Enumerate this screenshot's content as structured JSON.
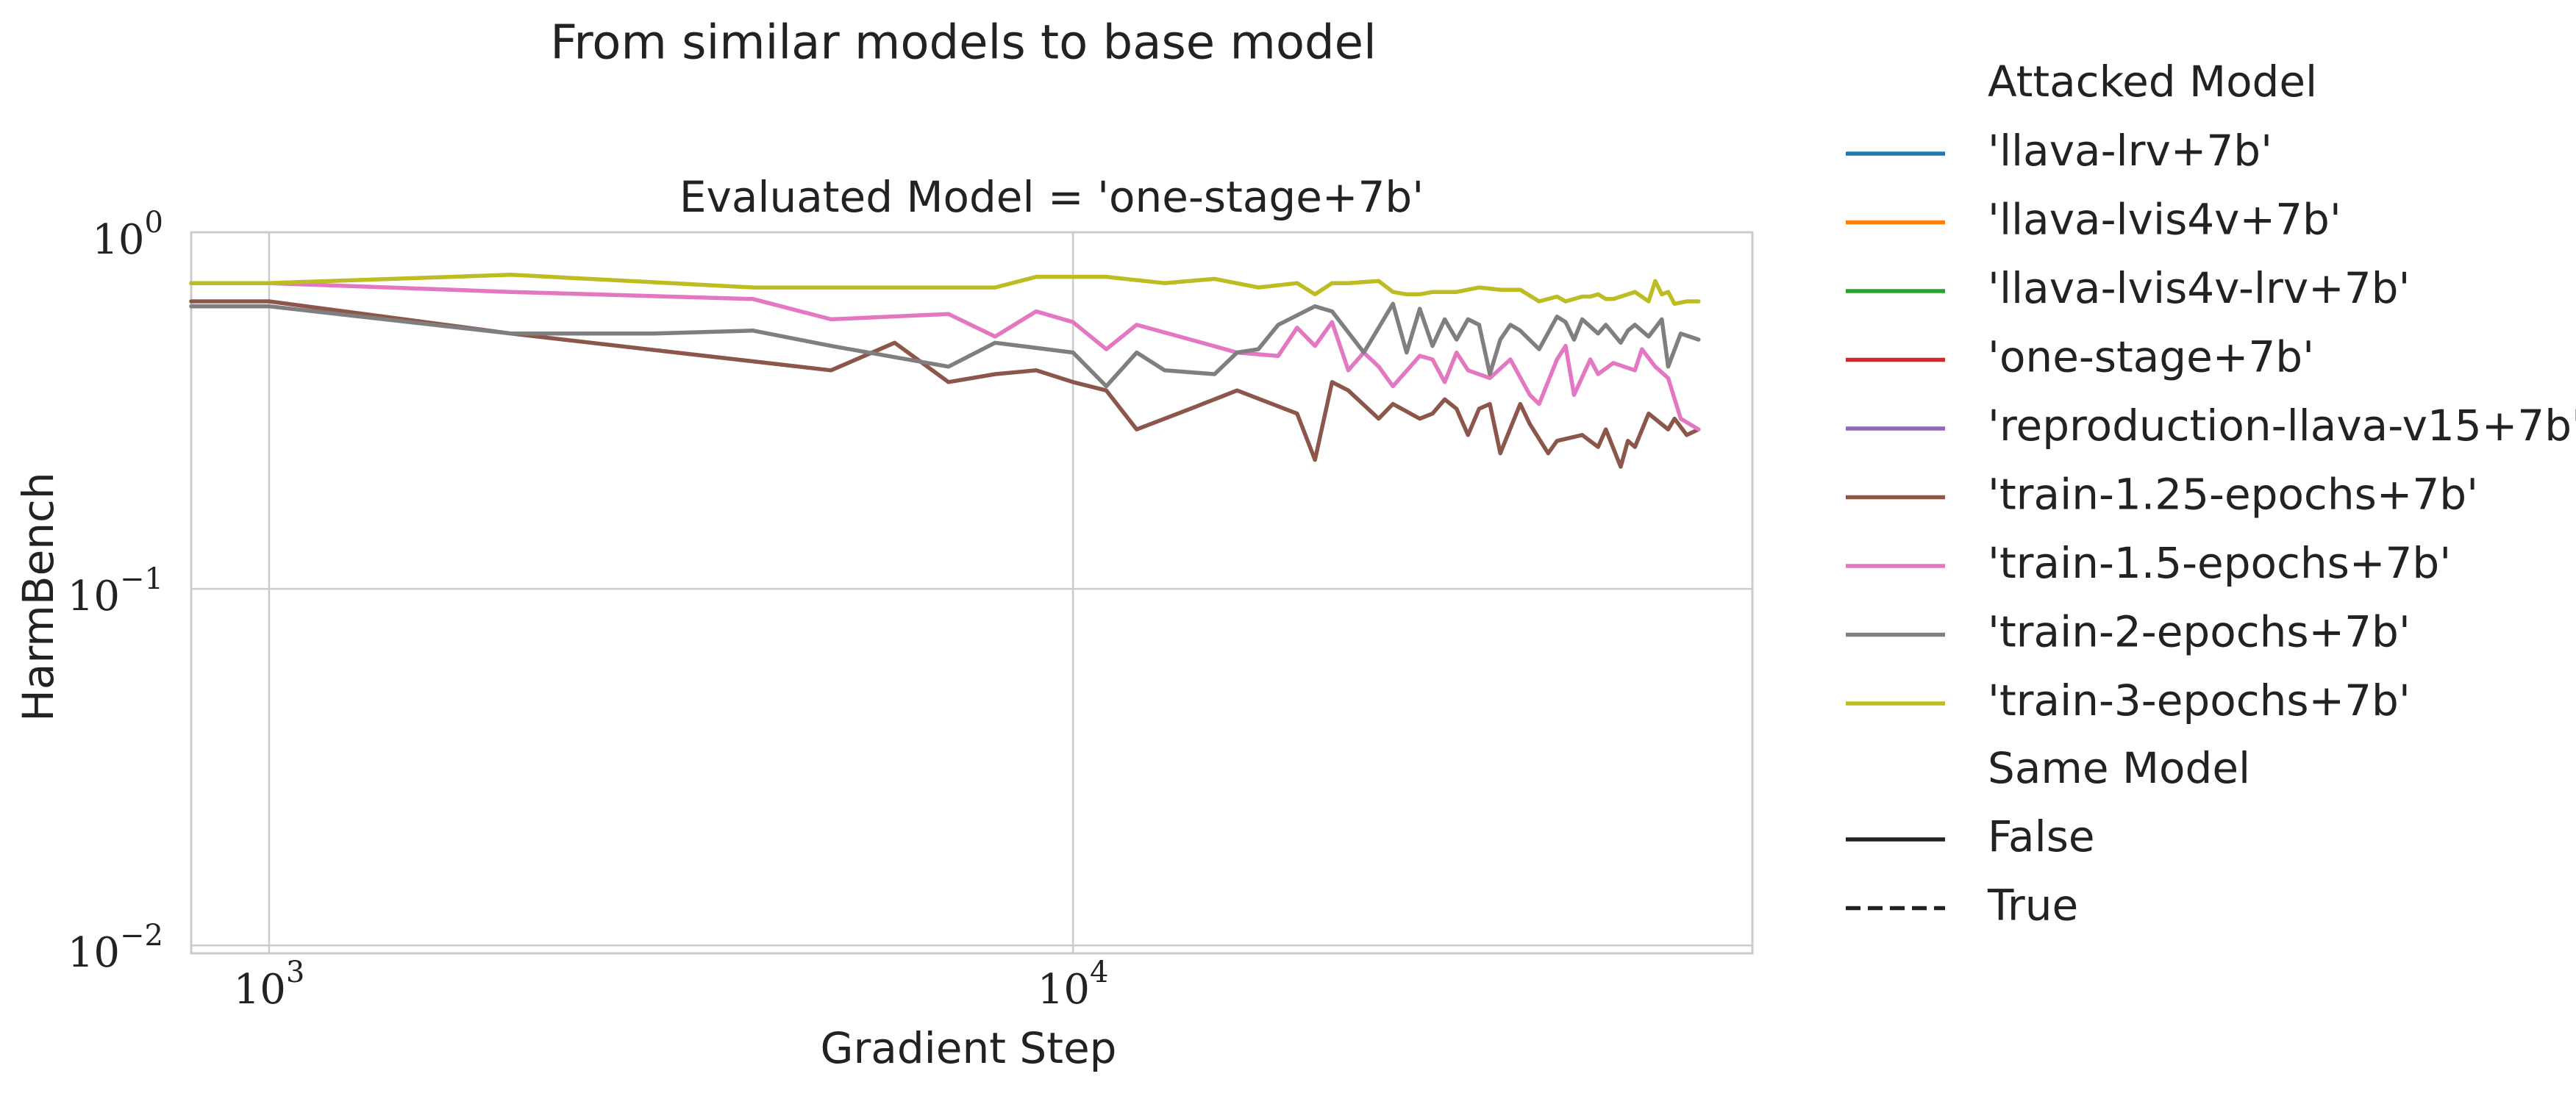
{
  "chart_data": {
    "type": "line",
    "title": "From similar models to base model",
    "subtitle": "Evaluated Model = 'one-stage+7b'",
    "xlabel": "Gradient Step",
    "ylabel": "HarmBench",
    "x_scale": "log",
    "y_scale": "log",
    "xlim": [
      800,
      70000
    ],
    "ylim": [
      0.0095,
      1.0
    ],
    "x_ticks": [
      {
        "value": 1000,
        "base": "10",
        "exp": "3"
      },
      {
        "value": 10000,
        "base": "10",
        "exp": "4"
      }
    ],
    "y_ticks": [
      {
        "value": 1,
        "base": "10",
        "exp": "0"
      },
      {
        "value": 0.1,
        "base": "10",
        "exp": "−1"
      },
      {
        "value": 0.01,
        "base": "10",
        "exp": "−2"
      }
    ],
    "grid": true,
    "legend_placement": "right",
    "legend": {
      "hue_title": "Attacked Model",
      "style_title": "Same Model",
      "style_entries": [
        {
          "label": "False",
          "dash": "solid"
        },
        {
          "label": "True",
          "dash": "dashed"
        }
      ]
    },
    "series": [
      {
        "name": "'llava-lrv+7b'",
        "color": "#1f77b4",
        "x": [],
        "y": []
      },
      {
        "name": "'llava-lvis4v+7b'",
        "color": "#ff7f0e",
        "x": [],
        "y": []
      },
      {
        "name": "'llava-lvis4v-lrv+7b'",
        "color": "#2ca02c",
        "x": [],
        "y": []
      },
      {
        "name": "'one-stage+7b'",
        "color": "#d62728",
        "x": [],
        "y": []
      },
      {
        "name": "'reproduction-llava-v15+7b'",
        "color": "#9467bd",
        "x": [],
        "y": []
      },
      {
        "name": "'train-1.25-epochs+7b'",
        "color": "#8c564b",
        "x": [
          800,
          1000,
          2000,
          5000,
          6000,
          7000,
          8000,
          9000,
          10000,
          11000,
          12000,
          14000,
          16000,
          19000,
          20000,
          21000,
          22000,
          24000,
          25000,
          27000,
          28000,
          29000,
          30000,
          31000,
          32000,
          33000,
          34000,
          36000,
          37000,
          39000,
          40000,
          43000,
          45000,
          46000,
          48000,
          49000,
          50000,
          52000,
          55000,
          56000,
          58000,
          60000
        ],
        "y": [
          0.64,
          0.64,
          0.52,
          0.41,
          0.49,
          0.38,
          0.4,
          0.41,
          0.38,
          0.36,
          0.28,
          0.32,
          0.36,
          0.31,
          0.23,
          0.38,
          0.36,
          0.3,
          0.33,
          0.3,
          0.31,
          0.34,
          0.32,
          0.27,
          0.32,
          0.33,
          0.24,
          0.33,
          0.29,
          0.24,
          0.26,
          0.27,
          0.25,
          0.28,
          0.22,
          0.26,
          0.25,
          0.31,
          0.28,
          0.3,
          0.27,
          0.28
        ]
      },
      {
        "name": "'train-1.5-epochs+7b'",
        "color": "#e377c2",
        "x": [
          800,
          1000,
          2000,
          4000,
          5000,
          7000,
          8000,
          9000,
          10000,
          11000,
          12000,
          14000,
          16000,
          18000,
          19000,
          20000,
          21000,
          22000,
          23000,
          24000,
          25000,
          27000,
          28000,
          29000,
          30000,
          31000,
          33000,
          35000,
          37000,
          38000,
          40000,
          41000,
          42000,
          44000,
          45000,
          47000,
          50000,
          51000,
          53000,
          55000,
          57000,
          60000
        ],
        "y": [
          0.72,
          0.72,
          0.68,
          0.65,
          0.57,
          0.59,
          0.51,
          0.6,
          0.56,
          0.47,
          0.55,
          0.5,
          0.46,
          0.45,
          0.54,
          0.48,
          0.56,
          0.41,
          0.46,
          0.42,
          0.37,
          0.45,
          0.44,
          0.38,
          0.46,
          0.41,
          0.39,
          0.44,
          0.35,
          0.33,
          0.44,
          0.48,
          0.35,
          0.44,
          0.4,
          0.43,
          0.41,
          0.47,
          0.42,
          0.39,
          0.3,
          0.28
        ]
      },
      {
        "name": "'train-2-epochs+7b'",
        "color": "#7f7f7f",
        "x": [
          800,
          1000,
          2000,
          3000,
          4000,
          5000,
          7000,
          8000,
          10000,
          11000,
          12000,
          13000,
          15000,
          16000,
          17000,
          18000,
          20000,
          21000,
          23000,
          25000,
          26000,
          27000,
          28000,
          29000,
          30000,
          31000,
          32000,
          33000,
          34000,
          35000,
          36000,
          38000,
          40000,
          41000,
          42000,
          43000,
          45000,
          46000,
          48000,
          49000,
          50000,
          52000,
          54000,
          55000,
          57000,
          60000
        ],
        "y": [
          0.62,
          0.62,
          0.52,
          0.52,
          0.53,
          0.48,
          0.42,
          0.49,
          0.46,
          0.37,
          0.46,
          0.41,
          0.4,
          0.46,
          0.47,
          0.55,
          0.62,
          0.6,
          0.46,
          0.63,
          0.46,
          0.61,
          0.48,
          0.57,
          0.5,
          0.57,
          0.55,
          0.4,
          0.5,
          0.55,
          0.53,
          0.47,
          0.58,
          0.56,
          0.5,
          0.57,
          0.52,
          0.55,
          0.49,
          0.53,
          0.55,
          0.51,
          0.57,
          0.42,
          0.52,
          0.5
        ]
      },
      {
        "name": "'train-3-epochs+7b'",
        "color": "#bcbd22",
        "x": [
          800,
          1000,
          2000,
          4000,
          8000,
          9000,
          11000,
          13000,
          15000,
          17000,
          19000,
          20000,
          21000,
          22000,
          24000,
          25000,
          26000,
          27000,
          28000,
          30000,
          32000,
          34000,
          36000,
          38000,
          40000,
          41000,
          43000,
          44000,
          45000,
          46000,
          47000,
          48000,
          50000,
          52000,
          53000,
          54000,
          55000,
          56000,
          58000,
          60000
        ],
        "y": [
          0.72,
          0.72,
          0.76,
          0.7,
          0.7,
          0.75,
          0.75,
          0.72,
          0.74,
          0.7,
          0.72,
          0.67,
          0.72,
          0.72,
          0.73,
          0.68,
          0.67,
          0.67,
          0.68,
          0.68,
          0.7,
          0.69,
          0.69,
          0.64,
          0.66,
          0.64,
          0.66,
          0.66,
          0.67,
          0.65,
          0.65,
          0.66,
          0.68,
          0.64,
          0.73,
          0.67,
          0.68,
          0.63,
          0.64,
          0.64
        ]
      }
    ]
  }
}
